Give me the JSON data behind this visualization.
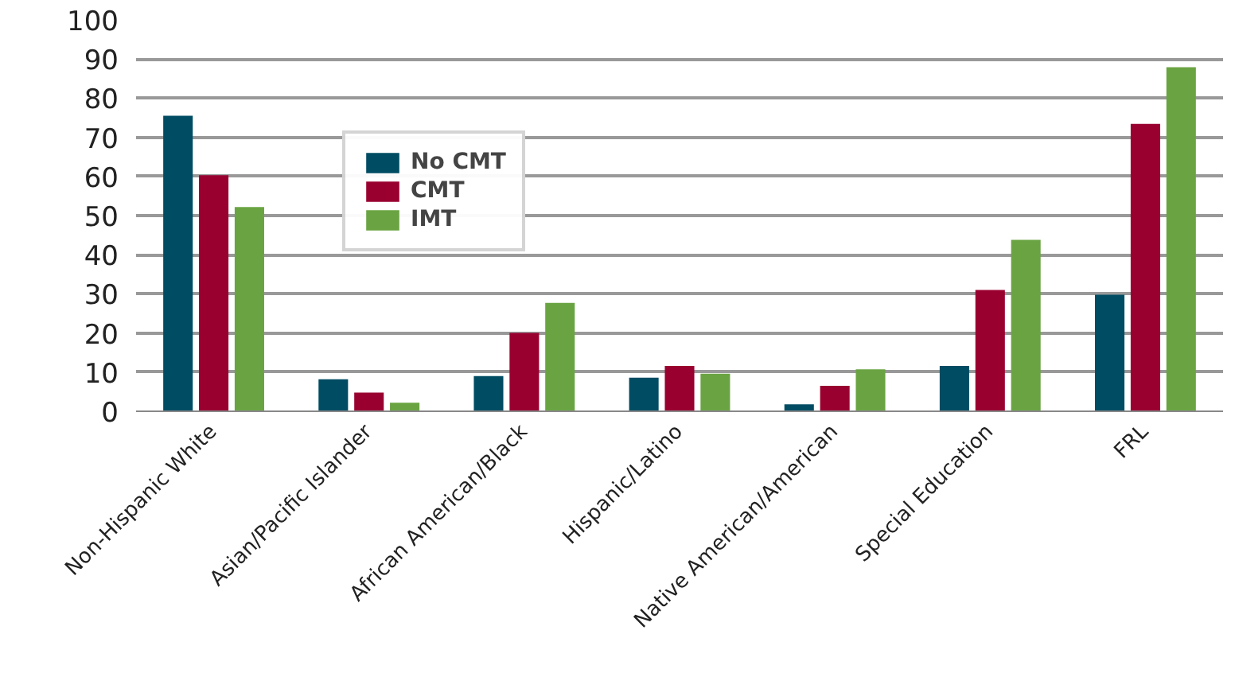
{
  "chart_data": {
    "type": "bar",
    "categories": [
      "Non-Hispanic White",
      "Asian/Pacific Islander",
      "African American/Black",
      "Hispanic/Latino",
      "Native American/American",
      "Special Education",
      "FRL"
    ],
    "series": [
      {
        "name": "No CMT",
        "color": "#004c63",
        "values": [
          75.5,
          8.2,
          9,
          8.6,
          1.8,
          11.6,
          29.8
        ]
      },
      {
        "name": "CMT",
        "color": "#990030",
        "values": [
          60.3,
          4.8,
          20,
          11.6,
          6.5,
          31,
          73.4
        ]
      },
      {
        "name": "IMT",
        "color": "#6aa442",
        "values": [
          52.2,
          2.2,
          27.7,
          9.6,
          10.7,
          43.8,
          87.9
        ]
      }
    ],
    "ylim": [
      0,
      100
    ],
    "yticks": [
      0,
      10,
      20,
      30,
      40,
      50,
      60,
      70,
      80,
      90,
      100
    ],
    "grid": "y",
    "legend": "top center"
  }
}
